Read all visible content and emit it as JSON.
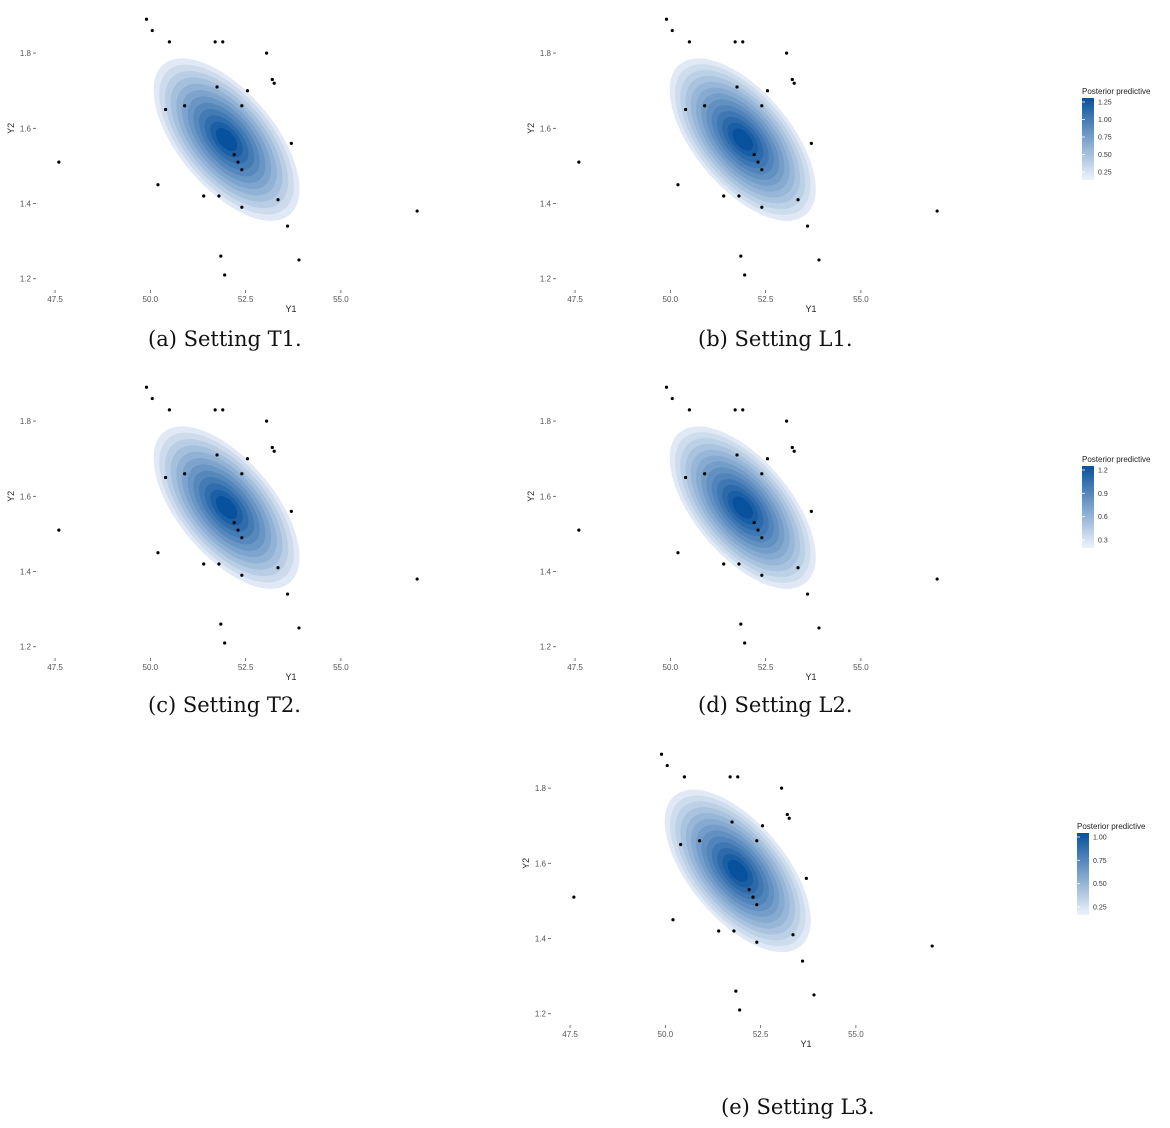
{
  "chart_data": [
    {
      "panel": "a",
      "type": "scatter",
      "plot_elements": [
        "density-contour-fill",
        "points"
      ],
      "caption": "(a) Setting T1.",
      "xlabel": "Y1",
      "ylabel": "Y2",
      "x_ticks": [
        47.5,
        50.0,
        52.5,
        55.0
      ],
      "x_tick_labels": [
        "47.5",
        "50.0",
        "52.5",
        "55.0"
      ],
      "y_ticks": [
        1.2,
        1.4,
        1.6,
        1.8
      ],
      "y_tick_labels": [
        "1.2",
        "1.4",
        "1.6",
        "1.8"
      ],
      "xlim": [
        47.0,
        57.6
      ],
      "ylim": [
        1.17,
        1.92
      ],
      "density_levels": 12,
      "density_color": "#08519c",
      "density_center": [
        52.0,
        1.57
      ],
      "legend": null,
      "grid": false
    },
    {
      "panel": "b",
      "type": "scatter",
      "plot_elements": [
        "density-contour-fill",
        "points"
      ],
      "caption": "(b) Setting L1.",
      "xlabel": "Y1",
      "ylabel": "Y2",
      "x_ticks": [
        47.5,
        50.0,
        52.5,
        55.0
      ],
      "x_tick_labels": [
        "47.5",
        "50.0",
        "52.5",
        "55.0"
      ],
      "y_ticks": [
        1.2,
        1.4,
        1.6,
        1.8
      ],
      "y_tick_labels": [
        "1.2",
        "1.4",
        "1.6",
        "1.8"
      ],
      "xlim": [
        47.0,
        57.6
      ],
      "ylim": [
        1.17,
        1.92
      ],
      "density_levels": 13,
      "density_color": "#08519c",
      "density_center": [
        51.9,
        1.57
      ],
      "legend": {
        "title": "Posterior predictive",
        "ticks": [
          "1.25",
          "1.00",
          "0.75",
          "0.50",
          "0.25"
        ],
        "position": "right"
      },
      "grid": false
    },
    {
      "panel": "c",
      "type": "scatter",
      "plot_elements": [
        "density-contour-fill",
        "points"
      ],
      "caption": "(c) Setting T2.",
      "xlabel": "Y1",
      "ylabel": "Y2",
      "x_ticks": [
        47.5,
        50.0,
        52.5,
        55.0
      ],
      "x_tick_labels": [
        "47.5",
        "50.0",
        "52.5",
        "55.0"
      ],
      "y_ticks": [
        1.2,
        1.4,
        1.6,
        1.8
      ],
      "y_tick_labels": [
        "1.2",
        "1.4",
        "1.6",
        "1.8"
      ],
      "xlim": [
        47.0,
        57.6
      ],
      "ylim": [
        1.17,
        1.92
      ],
      "density_levels": 12,
      "density_color": "#08519c",
      "density_center": [
        52.0,
        1.57
      ],
      "legend": null,
      "grid": false
    },
    {
      "panel": "d",
      "type": "scatter",
      "plot_elements": [
        "density-contour-fill",
        "points"
      ],
      "caption": "(d) Setting L2.",
      "xlabel": "Y1",
      "ylabel": "Y2",
      "x_ticks": [
        47.5,
        50.0,
        52.5,
        55.0
      ],
      "x_tick_labels": [
        "47.5",
        "50.0",
        "52.5",
        "55.0"
      ],
      "y_ticks": [
        1.2,
        1.4,
        1.6,
        1.8
      ],
      "y_tick_labels": [
        "1.2",
        "1.4",
        "1.6",
        "1.8"
      ],
      "xlim": [
        47.0,
        57.6
      ],
      "ylim": [
        1.17,
        1.92
      ],
      "density_levels": 13,
      "density_color": "#08519c",
      "density_center": [
        51.9,
        1.57
      ],
      "legend": {
        "title": "Posterior predictive",
        "ticks": [
          "1.2",
          "0.9",
          "0.6",
          "0.3"
        ],
        "position": "right"
      },
      "grid": false
    },
    {
      "panel": "e",
      "type": "scatter",
      "plot_elements": [
        "density-contour-fill",
        "points"
      ],
      "caption": "(e) Setting L3.",
      "xlabel": "Y1",
      "ylabel": "Y2",
      "x_ticks": [
        47.5,
        50.0,
        52.5,
        55.0
      ],
      "x_tick_labels": [
        "47.5",
        "50.0",
        "52.5",
        "55.0"
      ],
      "y_ticks": [
        1.2,
        1.4,
        1.6,
        1.8
      ],
      "y_tick_labels": [
        "1.2",
        "1.4",
        "1.6",
        "1.8"
      ],
      "xlim": [
        47.0,
        57.6
      ],
      "ylim": [
        1.17,
        1.92
      ],
      "density_levels": 13,
      "density_color": "#08519c",
      "density_center": [
        51.9,
        1.58
      ],
      "legend": {
        "title": "Posterior predictive",
        "ticks": [
          "1.00",
          "0.75",
          "0.50",
          "0.25"
        ],
        "position": "right"
      },
      "grid": false
    }
  ],
  "observations": {
    "y1": [
      49.9,
      50.05,
      50.5,
      51.7,
      51.9,
      53.05,
      53.25,
      53.2,
      51.75,
      52.55,
      52.4,
      50.9,
      50.4,
      53.7,
      52.2,
      52.3,
      52.4,
      50.2,
      51.4,
      51.8,
      53.35,
      52.4,
      53.6,
      53.9,
      51.85,
      51.95,
      47.6,
      57.0
    ],
    "y2": [
      1.89,
      1.86,
      1.83,
      1.83,
      1.83,
      1.8,
      1.72,
      1.73,
      1.71,
      1.7,
      1.66,
      1.66,
      1.65,
      1.56,
      1.53,
      1.51,
      1.49,
      1.45,
      1.42,
      1.42,
      1.41,
      1.39,
      1.34,
      1.25,
      1.26,
      1.21,
      1.51,
      1.38
    ]
  }
}
